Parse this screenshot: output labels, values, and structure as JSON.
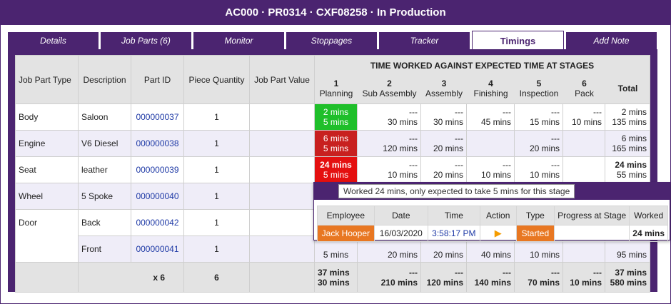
{
  "title": "AC000 · PR0314 · CXF08258 · In Production",
  "tabs": [
    "Details",
    "Job Parts (6)",
    "Monitor",
    "Stoppages",
    "Tracker",
    "Timings",
    "Add Note"
  ],
  "active_tab": "Timings",
  "table": {
    "headers": {
      "job_part_type": "Job Part Type",
      "description": "Description",
      "part_id": "Part ID",
      "piece_quantity": "Piece Quantity",
      "job_part_value": "Job Part Value",
      "time_title": "TIME WORKED AGAINST EXPECTED TIME AT STAGES",
      "stages": [
        {
          "num": "1",
          "name": "Planning"
        },
        {
          "num": "2",
          "name": "Sub Assembly"
        },
        {
          "num": "3",
          "name": "Assembly"
        },
        {
          "num": "4",
          "name": "Finishing"
        },
        {
          "num": "5",
          "name": "Inspection"
        },
        {
          "num": "6",
          "name": "Pack"
        }
      ],
      "total": "Total"
    },
    "rows": [
      {
        "type": "Body",
        "desc": "Saloon",
        "pid": "000000037",
        "qty": "1",
        "s1": [
          "2 mins",
          "5 mins"
        ],
        "s2": [
          "---",
          "30 mins"
        ],
        "s3": [
          "---",
          "30 mins"
        ],
        "s4": [
          "---",
          "45 mins"
        ],
        "s5": [
          "---",
          "15 mins"
        ],
        "s6": [
          "---",
          "10 mins"
        ],
        "total": [
          "2 mins",
          "135 mins"
        ]
      },
      {
        "type": "Engine",
        "desc": "V6 Diesel",
        "pid": "000000038",
        "qty": "1",
        "s1": [
          "6 mins",
          "5 mins"
        ],
        "s2": [
          "---",
          "120 mins"
        ],
        "s3": [
          "---",
          "20 mins"
        ],
        "s4": [
          "",
          ""
        ],
        "s5": [
          "---",
          "20 mins"
        ],
        "s6": [
          "",
          ""
        ],
        "total": [
          "6 mins",
          "165 mins"
        ]
      },
      {
        "type": "Seat",
        "desc": "leather",
        "pid": "000000039",
        "qty": "1",
        "s1": [
          "24 mins",
          "5 mins"
        ],
        "s2": [
          "---",
          "10 mins"
        ],
        "s3": [
          "---",
          "20 mins"
        ],
        "s4": [
          "---",
          "10 mins"
        ],
        "s5": [
          "---",
          "10 mins"
        ],
        "s6": [
          "",
          ""
        ],
        "total": [
          "24 mins",
          "55 mins"
        ]
      },
      {
        "type": "Wheel",
        "desc": "5 Spoke",
        "pid": "000000040",
        "qty": "1"
      },
      {
        "type": "Door",
        "desc": "Back",
        "pid": "000000042",
        "qty": "1"
      },
      {
        "type": "",
        "desc": "Front",
        "pid": "000000041",
        "qty": "1",
        "s1": [
          "5 mins"
        ],
        "s2": [
          "20 mins"
        ],
        "s3": [
          "20 mins"
        ],
        "s4": [
          "40 mins"
        ],
        "s5": [
          "10 mins"
        ],
        "total": [
          "95 mins"
        ]
      }
    ],
    "footer": {
      "count": "x 6",
      "qty": "6",
      "s1": [
        "37 mins",
        "30 mins"
      ],
      "s2": [
        "---",
        "210 mins"
      ],
      "s3": [
        "---",
        "120 mins"
      ],
      "s4": [
        "---",
        "140 mins"
      ],
      "s5": [
        "---",
        "70 mins"
      ],
      "s6": [
        "---",
        "10 mins"
      ],
      "total": [
        "37 mins",
        "580 mins"
      ]
    }
  },
  "popup": {
    "tooltip": "Worked 24 mins, only expected to take 5 mins for this stage",
    "headers": [
      "Employee",
      "Date",
      "Time",
      "Action",
      "Type",
      "Progress at Stage",
      "Worked"
    ],
    "row": {
      "employee": "Jack Hooper",
      "date": "16/03/2020",
      "time": "3:58:17 PM",
      "type": "Started",
      "progress": "",
      "worked": "24 mins"
    }
  },
  "colors": {
    "brand": "#4b2470",
    "green": "#1fbf2a",
    "red": "#c8201f",
    "orange": "#e87722"
  }
}
